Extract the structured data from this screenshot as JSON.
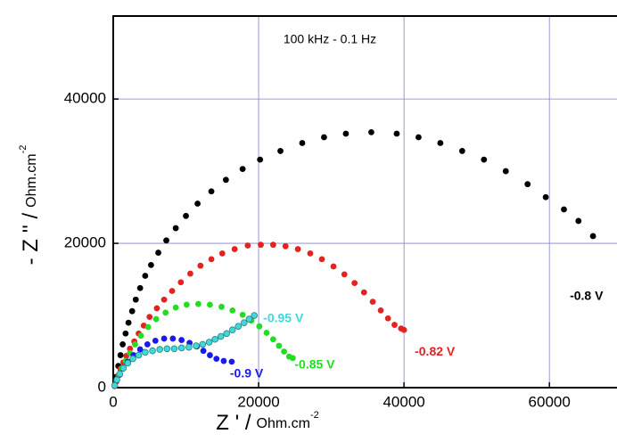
{
  "chart_data": {
    "type": "scatter",
    "annotation": "100 kHz - 0.1 Hz",
    "x_label": "Z ' /",
    "x_label_unit": "Ohm.cm",
    "x_label_exp": "-2",
    "y_label": "- Z '' /",
    "y_label_unit": "Ohm.cm",
    "y_label_exp": "-2",
    "xlim": [
      0,
      69300
    ],
    "ylim": [
      0,
      51500
    ],
    "xticks": [
      0,
      20000,
      40000,
      60000
    ],
    "yticks": [
      0,
      20000,
      40000
    ],
    "grid": true,
    "series": [
      {
        "name": "-0.8 V",
        "color": "#000000",
        "x": [
          200,
          400,
          700,
          1000,
          1300,
          1700,
          2100,
          2600,
          3100,
          3700,
          4400,
          5200,
          6200,
          7300,
          8600,
          10000,
          11600,
          13500,
          15500,
          17800,
          20200,
          23000,
          26000,
          29000,
          32000,
          35500,
          39000,
          42000,
          45000,
          48000,
          51000,
          54000,
          57000,
          59500,
          62000,
          64000,
          66000
        ],
        "values": [
          300,
          1500,
          3000,
          4500,
          6000,
          7500,
          9000,
          10600,
          12200,
          13800,
          15500,
          17000,
          18700,
          20400,
          22100,
          23800,
          25500,
          27200,
          28800,
          30300,
          31600,
          32800,
          33900,
          34700,
          35200,
          35400,
          35200,
          34700,
          33900,
          32800,
          31600,
          30000,
          28200,
          26400,
          24700,
          23100,
          21000
        ]
      },
      {
        "name": "-0.82 V",
        "color": "#e32222",
        "x": [
          200,
          400,
          700,
          1000,
          1400,
          1800,
          2300,
          2900,
          3500,
          4200,
          5000,
          6000,
          7000,
          8100,
          9300,
          10600,
          12000,
          13500,
          15000,
          16700,
          18500,
          20300,
          22000,
          23700,
          25400,
          27100,
          28700,
          30300,
          31800,
          33200,
          34500,
          35700,
          36800,
          37800,
          38700,
          39600,
          40000
        ],
        "values": [
          200,
          800,
          1700,
          2600,
          3500,
          4400,
          5400,
          6400,
          7500,
          8600,
          9800,
          11000,
          12200,
          13400,
          14600,
          15800,
          16900,
          17800,
          18600,
          19200,
          19700,
          19800,
          19800,
          19600,
          19200,
          18600,
          17800,
          16800,
          15700,
          14500,
          13200,
          11900,
          10700,
          9600,
          8700,
          8200,
          8000
        ]
      },
      {
        "name": "-0.85 V",
        "color": "#22dd22",
        "x": [
          200,
          500,
          800,
          1200,
          1700,
          2300,
          3000,
          3800,
          4800,
          5900,
          7200,
          8600,
          10100,
          11700,
          13300,
          14900,
          16400,
          17800,
          19000,
          20100,
          21100,
          22000,
          22800,
          23500,
          24200,
          24700
        ],
        "values": [
          300,
          1000,
          1800,
          2700,
          3700,
          4800,
          6000,
          7200,
          8400,
          9500,
          10400,
          11100,
          11500,
          11600,
          11500,
          11200,
          10700,
          10100,
          9300,
          8500,
          7600,
          6700,
          5800,
          5000,
          4300,
          4100
        ]
      },
      {
        "name": "-0.9 V",
        "color": "#1a1aee",
        "x": [
          200,
          500,
          900,
          1400,
          2000,
          2800,
          3700,
          4700,
          5800,
          7000,
          8200,
          9400,
          10500,
          11500,
          12400,
          13300,
          14200,
          15200,
          16300
        ],
        "values": [
          300,
          1000,
          1800,
          2700,
          3600,
          4500,
          5300,
          6000,
          6500,
          6800,
          6800,
          6600,
          6200,
          5700,
          5100,
          4500,
          4000,
          3700,
          3600
        ]
      },
      {
        "name": "-0.95 V",
        "color": "#40d8d8",
        "x": [
          200,
          500,
          900,
          1400,
          2000,
          2700,
          3500,
          4400,
          5400,
          6400,
          7400,
          8400,
          9400,
          10400,
          11400,
          12300,
          13200,
          14000,
          14800,
          15600,
          16400,
          17200,
          18000,
          18700,
          19400
        ],
        "values": [
          300,
          1100,
          1900,
          2700,
          3400,
          4000,
          4500,
          4900,
          5100,
          5300,
          5400,
          5400,
          5500,
          5600,
          5800,
          6000,
          6300,
          6700,
          7100,
          7500,
          8000,
          8500,
          9000,
          9500,
          10000
        ]
      }
    ]
  }
}
